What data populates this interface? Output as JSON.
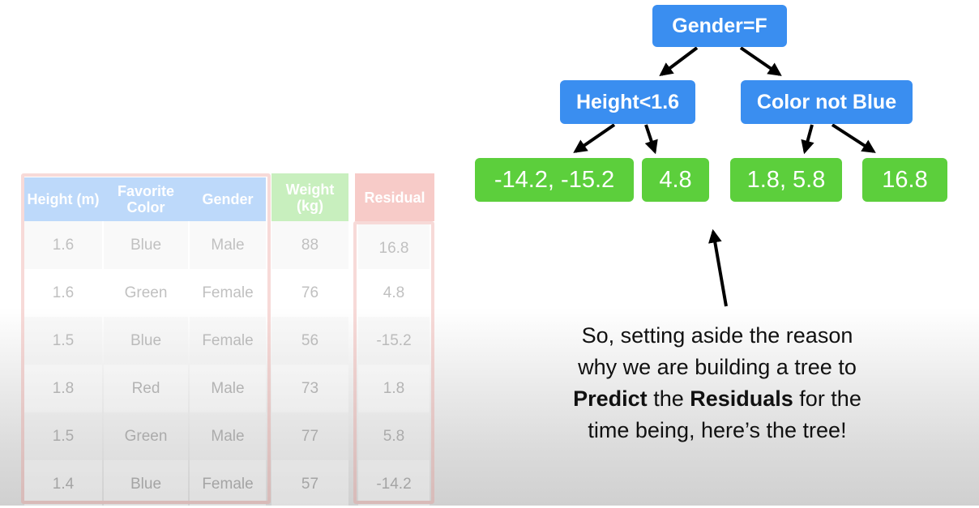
{
  "table": {
    "headers": {
      "height": "Height (m)",
      "color": "Favorite Color",
      "gender": "Gender",
      "weight": "Weight (kg)",
      "residual": "Residual"
    },
    "rows": [
      {
        "height": "1.6",
        "color": "Blue",
        "gender": "Male",
        "weight": "88",
        "residual": "16.8"
      },
      {
        "height": "1.6",
        "color": "Green",
        "gender": "Female",
        "weight": "76",
        "residual": "4.8"
      },
      {
        "height": "1.5",
        "color": "Blue",
        "gender": "Female",
        "weight": "56",
        "residual": "-15.2"
      },
      {
        "height": "1.8",
        "color": "Red",
        "gender": "Male",
        "weight": "73",
        "residual": "1.8"
      },
      {
        "height": "1.5",
        "color": "Green",
        "gender": "Male",
        "weight": "77",
        "residual": "5.8"
      },
      {
        "height": "1.4",
        "color": "Blue",
        "gender": "Female",
        "weight": "57",
        "residual": "-14.2"
      }
    ]
  },
  "tree": {
    "root": "Gender=F",
    "left_split": "Height<1.6",
    "right_split": "Color not Blue",
    "leaves": [
      "-14.2, -15.2",
      "4.8",
      "1.8, 5.8",
      "16.8"
    ]
  },
  "caption": {
    "line1": "So, setting aside the reason",
    "line2": "why we are building a tree to",
    "predict": "Predict",
    "the": " the ",
    "residuals": "Residuals",
    "for_the": " for the",
    "line4": "time being, here’s the tree!"
  },
  "colors": {
    "split_node": "#3a8ef0",
    "leaf_node": "#5ccf3c",
    "header_blue": "#3a8ef0",
    "header_green": "#5ccf3c",
    "header_red": "#e8645a",
    "frame_red": "#e8908a"
  }
}
